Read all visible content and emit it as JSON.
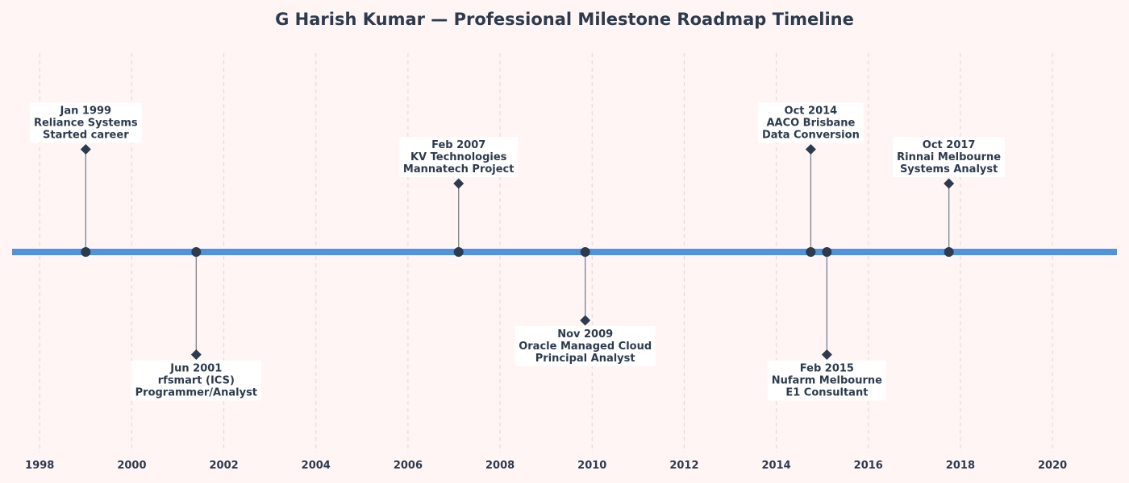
{
  "colors": {
    "background": "#fff5f5",
    "axis_line": "#4f92e0",
    "marker": "#2d3b4e",
    "stem": "#808a94",
    "grid": "#e8d4d4",
    "text": "#2d3b4e",
    "label_box": "#ffffff"
  },
  "chart_data": {
    "type": "timeline",
    "title": "G Harish Kumar — Professional Milestone Roadmap Timeline",
    "xlim": [
      1997.4,
      2021.4
    ],
    "x_ticks": [
      1998,
      2000,
      2002,
      2004,
      2006,
      2008,
      2010,
      2012,
      2014,
      2016,
      2018,
      2020
    ],
    "grid": "vertical dashed",
    "events": [
      {
        "x": 1999.0,
        "level": 3,
        "date": "Jan 1999",
        "company": "Reliance Systems",
        "role": "Started career"
      },
      {
        "x": 2001.4,
        "level": -3,
        "date": "Jun 2001",
        "company": "rfsmart (ICS)",
        "role": "Programmer/Analyst"
      },
      {
        "x": 2007.1,
        "level": 2,
        "date": "Feb 2007",
        "company": "KV Technologies",
        "role": "Mannatech Project"
      },
      {
        "x": 2009.85,
        "level": -2,
        "date": "Nov 2009",
        "company": "Oracle Managed Cloud",
        "role": "Principal Analyst"
      },
      {
        "x": 2014.75,
        "level": 3,
        "date": "Oct 2014",
        "company": "AACO Brisbane",
        "role": "Data Conversion"
      },
      {
        "x": 2015.1,
        "level": -3,
        "date": "Feb 2015",
        "company": "Nufarm Melbourne",
        "role": "E1 Consultant"
      },
      {
        "x": 2017.75,
        "level": 2,
        "date": "Oct 2017",
        "company": "Rinnai Melbourne",
        "role": "Systems Analyst"
      }
    ]
  }
}
